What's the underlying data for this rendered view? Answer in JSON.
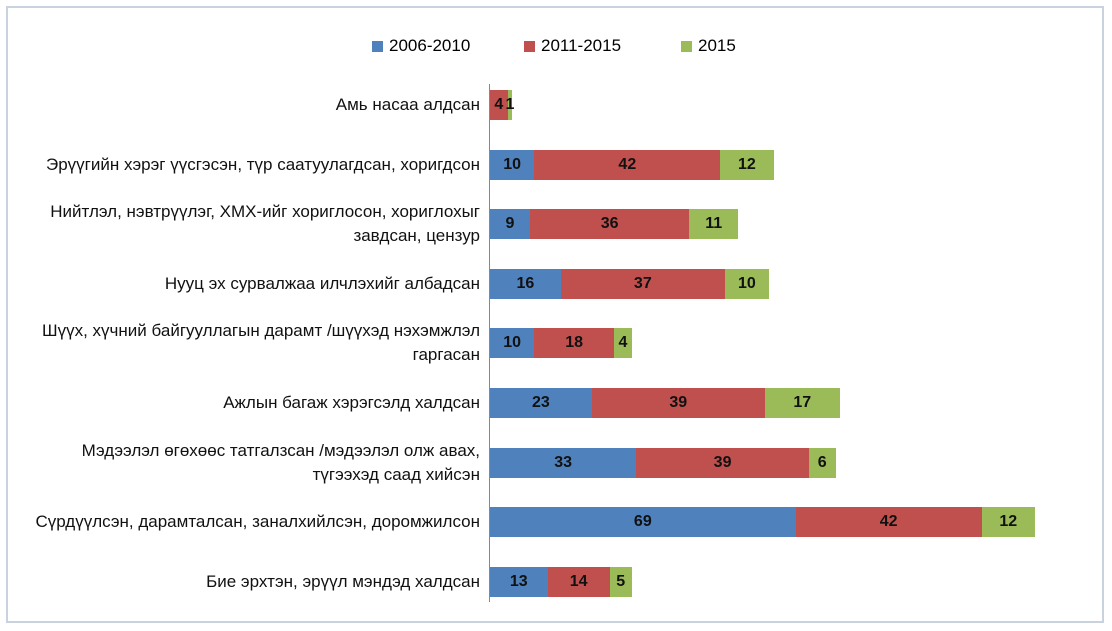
{
  "chart_data": {
    "type": "stacked-barh",
    "categories": [
      "Амь насаа алдсан",
      "Эрүүгийн хэрэг үүсгэсэн, түр саатуулагдсан, хоригдсон",
      "Нийтлэл, нэвтрүүлэг, ХМХ-ийг хориглосон, хориглохыг завдсан, цензур",
      "Нууц эх сурвалжаа илчлэхийг албадсан",
      "Шүүх, хүчний байгууллагын дарамт /шүүхэд нэхэмжлэл гаргасан",
      "Ажлын багаж хэрэгсэлд халдсан",
      "Мэдээлэл өгөхөөс татгалзсан /мэдээлэл олж авах, түгээхэд саад хийсэн",
      "Сүрдүүлсэн, дарамталсан, заналхийлсэн, доромжилсон",
      "Бие эрхтэн, эрүүл мэндэд халдсан"
    ],
    "series": [
      {
        "name": "2006-2010",
        "color": "#4f81bd",
        "values": [
          null,
          10,
          9,
          16,
          10,
          23,
          33,
          69,
          13
        ]
      },
      {
        "name": "2011-2015",
        "color": "#c0504d",
        "values": [
          4,
          42,
          36,
          37,
          18,
          39,
          39,
          42,
          14
        ]
      },
      {
        "name": "2015",
        "color": "#9bbb59",
        "values": [
          1,
          12,
          11,
          10,
          4,
          17,
          6,
          12,
          5
        ]
      }
    ],
    "legend": "top"
  }
}
